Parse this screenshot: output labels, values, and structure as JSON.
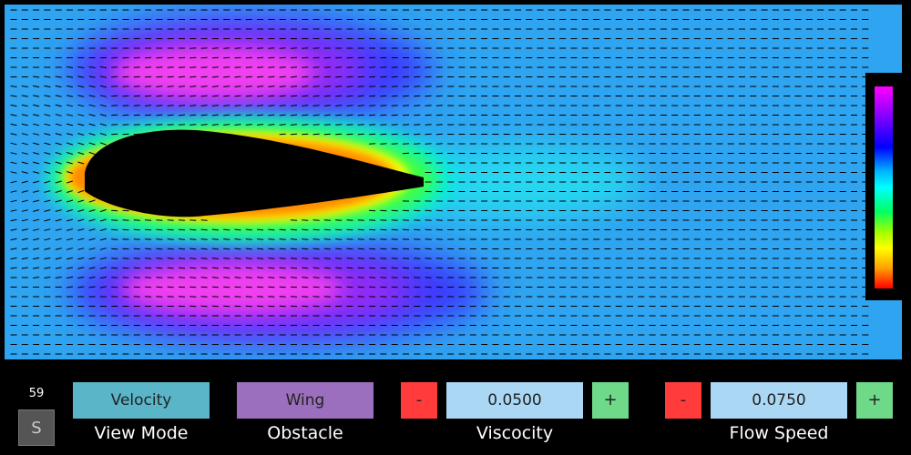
{
  "status": {
    "fps": "59",
    "s_button": "S"
  },
  "controls": {
    "view_mode": {
      "value": "Velocity",
      "label": "View Mode"
    },
    "obstacle": {
      "value": "Wing",
      "label": "Obstacle"
    },
    "viscosity": {
      "minus": "-",
      "value": "0.0500",
      "plus": "+",
      "label": "Viscocity"
    },
    "flow_speed": {
      "minus": "-",
      "value": "0.0750",
      "plus": "+",
      "label": "Flow Speed"
    }
  },
  "colors": {
    "background_flow": "#2fa4f0",
    "obstacle_fill": "#000000",
    "view_mode_button": "#5ab5c8",
    "obstacle_button": "#9b6fbe",
    "minus_button": "#ff3b3b",
    "plus_button": "#6fd98a",
    "value_field": "#aad8f4"
  },
  "legend": {
    "scale": [
      "#ff00ff",
      "#0000ff",
      "#00ffff",
      "#00ff60",
      "#ffff00",
      "#ff0000"
    ]
  }
}
